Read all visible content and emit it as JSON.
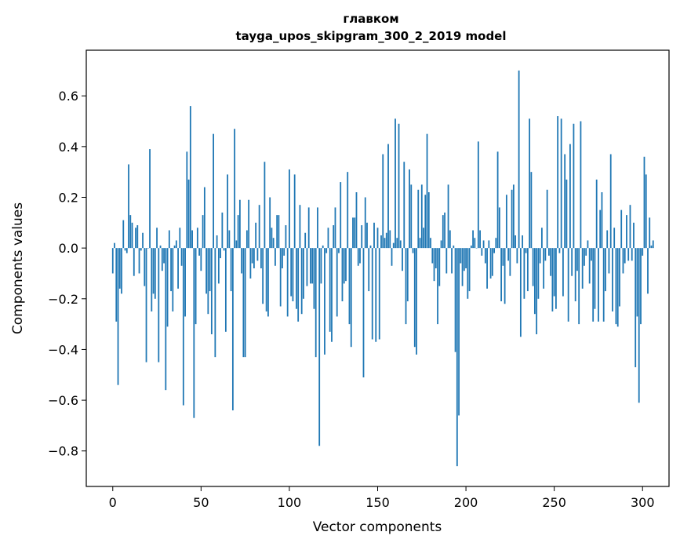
{
  "chart_data": {
    "type": "bar",
    "title_line1": "главком",
    "title_line2": "tayga_upos_skipgram_300_2_2019 model",
    "xlabel": "Vector components",
    "ylabel": "Components values",
    "xlim": [
      -15,
      315
    ],
    "ylim": [
      -0.94,
      0.78
    ],
    "xticks": [
      0,
      50,
      100,
      150,
      200,
      250,
      300
    ],
    "xtick_labels": [
      "0",
      "50",
      "100",
      "150",
      "200",
      "250",
      "300"
    ],
    "yticks": [
      -0.8,
      -0.6,
      -0.4,
      -0.2,
      0.0,
      0.2,
      0.4,
      0.6
    ],
    "ytick_labels": [
      "−0.8",
      "−0.6",
      "−0.4",
      "−0.2",
      "0.0",
      "0.2",
      "0.4",
      "0.6"
    ],
    "bar_color": "#1f77b4",
    "grid": false,
    "values": [
      -0.1,
      0.02,
      -0.29,
      -0.54,
      -0.16,
      -0.18,
      0.11,
      -0.01,
      -0.02,
      0.33,
      0.13,
      0.1,
      -0.11,
      0.08,
      0.09,
      -0.1,
      -0.01,
      0.06,
      -0.15,
      -0.45,
      0.0,
      0.39,
      -0.25,
      -0.18,
      -0.2,
      0.08,
      -0.45,
      0.01,
      -0.09,
      -0.06,
      -0.56,
      -0.31,
      0.07,
      -0.17,
      -0.25,
      0.01,
      0.03,
      -0.16,
      0.08,
      -0.07,
      -0.62,
      -0.27,
      0.38,
      0.27,
      0.56,
      0.07,
      -0.67,
      -0.3,
      0.08,
      -0.03,
      -0.09,
      0.13,
      0.24,
      -0.18,
      -0.26,
      -0.17,
      -0.34,
      0.45,
      -0.43,
      0.05,
      -0.14,
      -0.04,
      0.14,
      -0.01,
      -0.33,
      0.29,
      0.07,
      -0.17,
      -0.64,
      0.47,
      0.03,
      0.13,
      0.19,
      -0.1,
      -0.43,
      -0.43,
      0.07,
      0.19,
      -0.12,
      -0.06,
      -0.08,
      0.1,
      -0.05,
      0.17,
      -0.08,
      -0.22,
      0.34,
      -0.25,
      -0.27,
      0.2,
      0.08,
      0.04,
      -0.07,
      0.13,
      0.13,
      -0.23,
      -0.08,
      -0.03,
      0.09,
      -0.27,
      0.31,
      -0.19,
      -0.21,
      0.29,
      -0.24,
      -0.29,
      0.17,
      -0.26,
      -0.2,
      0.06,
      -0.15,
      0.16,
      -0.14,
      -0.14,
      -0.24,
      -0.43,
      0.16,
      -0.78,
      -0.14,
      0.01,
      -0.42,
      -0.02,
      0.08,
      -0.33,
      -0.37,
      0.09,
      0.16,
      -0.27,
      -0.02,
      0.26,
      -0.21,
      -0.14,
      -0.13,
      0.3,
      -0.3,
      -0.39,
      0.12,
      0.12,
      0.22,
      -0.07,
      -0.06,
      0.09,
      -0.51,
      0.2,
      0.1,
      -0.17,
      0.01,
      -0.36,
      0.1,
      -0.37,
      0.08,
      -0.36,
      0.05,
      0.37,
      0.04,
      0.06,
      0.41,
      0.07,
      -0.07,
      0.02,
      0.51,
      0.04,
      0.49,
      0.03,
      -0.09,
      0.34,
      -0.3,
      -0.21,
      0.31,
      0.25,
      -0.02,
      -0.39,
      -0.42,
      0.23,
      0.04,
      0.25,
      0.08,
      0.21,
      0.45,
      0.22,
      0.04,
      -0.06,
      -0.13,
      -0.08,
      -0.3,
      -0.15,
      0.03,
      0.13,
      0.14,
      -0.1,
      0.25,
      0.07,
      -0.1,
      0.01,
      -0.41,
      -0.86,
      -0.66,
      -0.06,
      -0.15,
      -0.09,
      -0.08,
      -0.2,
      -0.17,
      0.01,
      0.07,
      0.04,
      0.0,
      0.42,
      0.07,
      -0.03,
      0.03,
      -0.06,
      -0.16,
      0.03,
      -0.12,
      -0.11,
      -0.02,
      0.04,
      0.38,
      0.16,
      -0.21,
      -0.07,
      -0.22,
      0.21,
      -0.05,
      -0.11,
      0.23,
      0.25,
      0.05,
      -0.06,
      0.7,
      -0.35,
      0.05,
      -0.2,
      -0.02,
      -0.17,
      0.51,
      0.3,
      -0.15,
      -0.26,
      -0.34,
      -0.2,
      -0.06,
      0.08,
      -0.16,
      -0.05,
      0.23,
      -0.03,
      -0.11,
      -0.25,
      -0.19,
      -0.24,
      0.52,
      -0.02,
      0.51,
      -0.19,
      0.37,
      0.27,
      -0.29,
      0.41,
      -0.11,
      0.49,
      -0.21,
      -0.09,
      -0.3,
      0.5,
      -0.16,
      -0.07,
      -0.03,
      0.03,
      -0.14,
      -0.05,
      -0.29,
      -0.24,
      0.27,
      -0.29,
      0.15,
      0.22,
      -0.29,
      -0.17,
      0.07,
      -0.1,
      0.37,
      -0.25,
      0.08,
      -0.3,
      -0.31,
      -0.23,
      0.15,
      -0.1,
      -0.06,
      0.13,
      -0.05,
      0.17,
      -0.05,
      0.1,
      -0.47,
      -0.27,
      -0.61,
      -0.3,
      -0.03,
      0.36,
      0.29,
      -0.18,
      0.12,
      0.01,
      0.03
    ]
  }
}
